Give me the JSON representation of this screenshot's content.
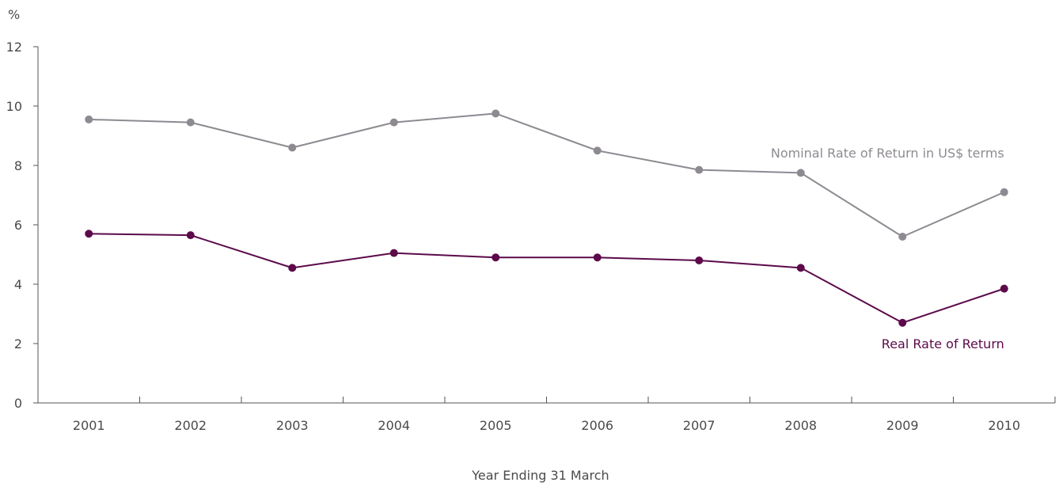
{
  "chart_data": {
    "type": "line",
    "title": "",
    "xlabel": "Year Ending 31 March",
    "ylabel": "%",
    "ylim": [
      0,
      12
    ],
    "yticks": [
      "0",
      "2",
      "4",
      "6",
      "8",
      "10",
      "12"
    ],
    "categories": [
      "2001",
      "2002",
      "2003",
      "2004",
      "2005",
      "2006",
      "2007",
      "2008",
      "2009",
      "2010"
    ],
    "grid": false,
    "legend": "inline labels near lines",
    "series": [
      {
        "name": "Nominal Rate of Return in US$ terms",
        "color": "#8e8a91",
        "label_anchor": "right-above-2010",
        "values": [
          9.55,
          9.45,
          8.6,
          9.45,
          9.75,
          8.5,
          7.85,
          7.75,
          5.6,
          7.1
        ]
      },
      {
        "name": "Real Rate of Return",
        "color": "#5c0a4a",
        "label_anchor": "right-below-2010",
        "values": [
          5.7,
          5.65,
          4.55,
          5.05,
          4.9,
          4.9,
          4.8,
          4.55,
          2.7,
          3.85
        ]
      }
    ],
    "colors": {
      "axis": "#555555",
      "text": "#4a4a4a"
    }
  }
}
